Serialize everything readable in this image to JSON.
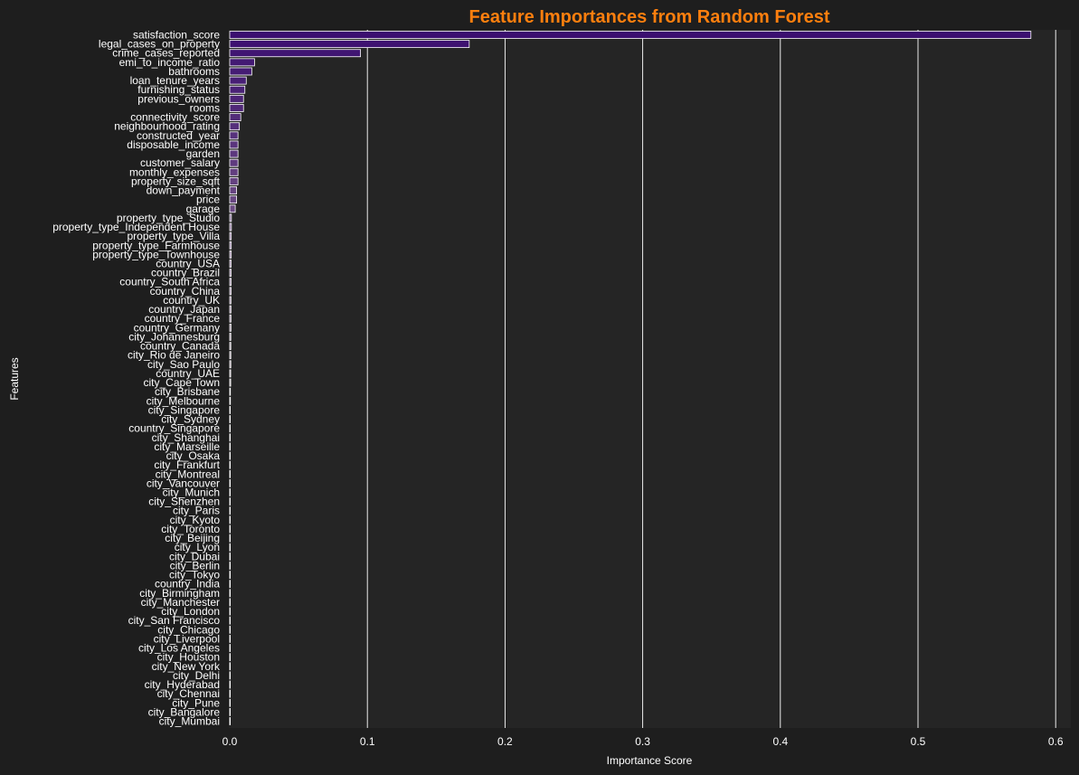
{
  "chart_data": {
    "type": "bar",
    "orientation": "horizontal",
    "title": "Feature Importances from Random Forest",
    "xlabel": "Importance Score",
    "ylabel": "Features",
    "xlim": [
      0,
      0.61
    ],
    "xticks": [
      "0.0",
      "0.1",
      "0.2",
      "0.3",
      "0.4",
      "0.5",
      "0.6"
    ],
    "grid": true,
    "categories": [
      "satisfaction_score",
      "legal_cases_on_property",
      "crime_cases_reported",
      "emi_to_income_ratio",
      "bathrooms",
      "loan_tenure_years",
      "furnishing_status",
      "previous_owners",
      "rooms",
      "connectivity_score",
      "neighbourhood_rating",
      "constructed_year",
      "disposable_income",
      "garden",
      "customer_salary",
      "monthly_expenses",
      "property_size_sqft",
      "down_payment",
      "price",
      "garage",
      "property_type_Studio",
      "property_type_Independent House",
      "property_type_Villa",
      "property_type_Farmhouse",
      "property_type_Townhouse",
      "country_USA",
      "country_Brazil",
      "country_South Africa",
      "country_China",
      "country_UK",
      "country_Japan",
      "country_France",
      "country_Germany",
      "city_Johannesburg",
      "country_Canada",
      "city_Rio de Janeiro",
      "city_Sao Paulo",
      "country_UAE",
      "city_Cape Town",
      "city_Brisbane",
      "city_Melbourne",
      "city_Singapore",
      "city_Sydney",
      "country_Singapore",
      "city_Shanghai",
      "city_Marseille",
      "city_Osaka",
      "city_Frankfurt",
      "city_Montreal",
      "city_Vancouver",
      "city_Munich",
      "city_Shenzhen",
      "city_Paris",
      "city_Kyoto",
      "city_Toronto",
      "city_Beijing",
      "city_Lyon",
      "city_Dubai",
      "city_Berlin",
      "city_Tokyo",
      "country_India",
      "city_Birmingham",
      "city_Manchester",
      "city_London",
      "city_San Francisco",
      "city_Chicago",
      "city_Liverpool",
      "city_Los Angeles",
      "city_Houston",
      "city_New York",
      "city_Delhi",
      "city_Hyderabad",
      "city_Chennai",
      "city_Pune",
      "city_Bangalore",
      "city_Mumbai"
    ],
    "values": [
      0.582,
      0.174,
      0.095,
      0.018,
      0.016,
      0.012,
      0.011,
      0.01,
      0.01,
      0.008,
      0.007,
      0.006,
      0.006,
      0.006,
      0.006,
      0.006,
      0.006,
      0.005,
      0.005,
      0.004,
      0.0012,
      0.0012,
      0.0011,
      0.0011,
      0.0011,
      0.001,
      0.001,
      0.001,
      0.001,
      0.0009,
      0.0009,
      0.0009,
      0.0009,
      0.0008,
      0.0008,
      0.0008,
      0.0008,
      0.0007,
      0.0007,
      0.0005,
      0.0005,
      0.0004,
      0.0004,
      0.0004,
      0.0004,
      0.0003,
      0.0003,
      0.0003,
      0.0003,
      0.0003,
      0.0003,
      0.0003,
      0.0002,
      0.0002,
      0.0002,
      0.0002,
      0.0002,
      0.0002,
      0.0002,
      0.0002,
      0.0002,
      0.0002,
      0.0001,
      0.0001,
      0.0001,
      0.0001,
      0.0001,
      0.0001,
      0.0001,
      0.0001,
      0.0001,
      0.0001,
      0.0001,
      0.0001,
      0.0001,
      0.0001
    ],
    "palette_start": "#3b0f70",
    "palette_end": "#fcfdbf",
    "colors": {
      "background": "#1e1e1e",
      "plot_background": "#252525",
      "grid": "#ffffff",
      "text": "#ffffff",
      "title": "#ff7f0e"
    }
  }
}
